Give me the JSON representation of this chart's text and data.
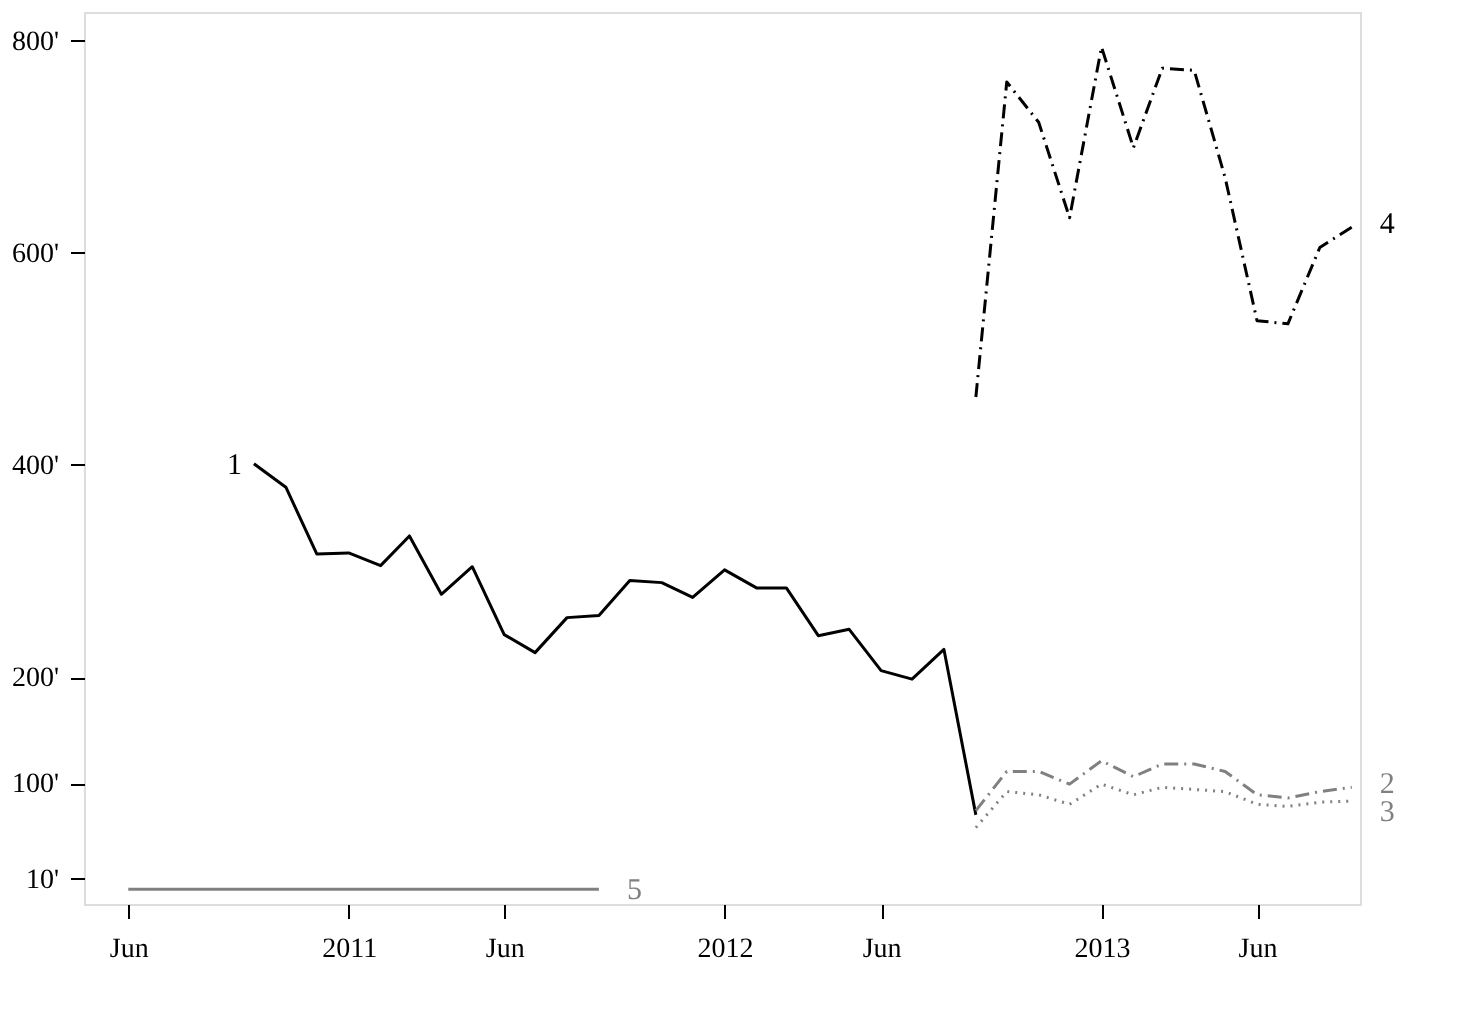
{
  "chart_data": {
    "type": "line",
    "xlim": [
      "2010-04-19",
      "2013-09-09"
    ],
    "xticks": [
      {
        "value": "2010-06-01",
        "label": "Jun"
      },
      {
        "value": "2011-01-01",
        "label": "2011"
      },
      {
        "value": "2011-06-01",
        "label": "Jun"
      },
      {
        "value": "2012-01-01",
        "label": "2012"
      },
      {
        "value": "2012-06-01",
        "label": "Jun"
      },
      {
        "value": "2013-01-01",
        "label": "2013"
      },
      {
        "value": "2013-06-01",
        "label": "Jun"
      }
    ],
    "ylim": [
      -14,
      827
    ],
    "yticks": [
      {
        "value": 10,
        "label": "10'"
      },
      {
        "value": 100,
        "label": "100'"
      },
      {
        "value": 200,
        "label": "200'"
      },
      {
        "value": 400,
        "label": "400'"
      },
      {
        "value": 600,
        "label": "600'"
      },
      {
        "value": 800,
        "label": "800'"
      }
    ],
    "grid": false,
    "series": [
      {
        "name": "1",
        "color": "#000000",
        "line_style": "solid",
        "x": [
          "2010-10",
          "2010-11",
          "2010-12",
          "2011-01",
          "2011-02",
          "2011-03",
          "2011-04",
          "2011-05",
          "2011-06",
          "2011-07",
          "2011-08",
          "2011-09",
          "2011-10",
          "2011-11",
          "2011-12",
          "2012-01",
          "2012-02",
          "2012-03",
          "2012-04",
          "2012-05",
          "2012-06",
          "2012-07",
          "2012-08",
          "2012-09"
        ],
        "values": [
          401,
          379,
          316,
          317,
          305,
          333,
          278,
          304,
          240,
          223,
          256,
          258,
          291,
          289,
          275,
          301,
          284,
          284,
          239,
          245,
          206,
          198,
          226,
          70
        ]
      },
      {
        "name": "2",
        "color": "#808080",
        "line_style": "dashed",
        "x": [
          "2012-09",
          "2012-10",
          "2012-11",
          "2012-12",
          "2013-01",
          "2013-02",
          "2013-03",
          "2013-04",
          "2013-05",
          "2013-06",
          "2013-07",
          "2013-08",
          "2013-09"
        ],
        "values": [
          74,
          111,
          111,
          99,
          121,
          106,
          118,
          118,
          111,
          89,
          86,
          92,
          96
        ]
      },
      {
        "name": "3",
        "color": "#808080",
        "line_style": "dotted",
        "x": [
          "2012-09",
          "2012-10",
          "2012-11",
          "2012-12",
          "2013-01",
          "2013-02",
          "2013-03",
          "2013-04",
          "2013-05",
          "2013-06",
          "2013-07",
          "2013-08",
          "2013-09"
        ],
        "values": [
          58,
          92,
          89,
          80,
          99,
          89,
          96,
          94,
          92,
          80,
          78,
          82,
          83
        ]
      },
      {
        "name": "4",
        "color": "#000000",
        "line_style": "dashed",
        "x": [
          "2012-09",
          "2012-10",
          "2012-11",
          "2012-12",
          "2013-01",
          "2013-02",
          "2013-03",
          "2013-04",
          "2013-05",
          "2013-06",
          "2013-07",
          "2013-08",
          "2013-09"
        ],
        "values": [
          464,
          761,
          723,
          633,
          794,
          699,
          774,
          772,
          671,
          536,
          533,
          605,
          624
        ]
      },
      {
        "name": "5",
        "color": "#808080",
        "line_style": "solid",
        "x": [
          "2010-06",
          "2010-07",
          "2010-08",
          "2010-09",
          "2010-10",
          "2010-11",
          "2010-12",
          "2011-01",
          "2011-02",
          "2011-03",
          "2011-04",
          "2011-05",
          "2011-06",
          "2011-07",
          "2011-08",
          "2011-09"
        ],
        "values": [
          0,
          0,
          0,
          0,
          0,
          0,
          0,
          0,
          0,
          0,
          0,
          0,
          0,
          0,
          0,
          0
        ]
      }
    ]
  }
}
